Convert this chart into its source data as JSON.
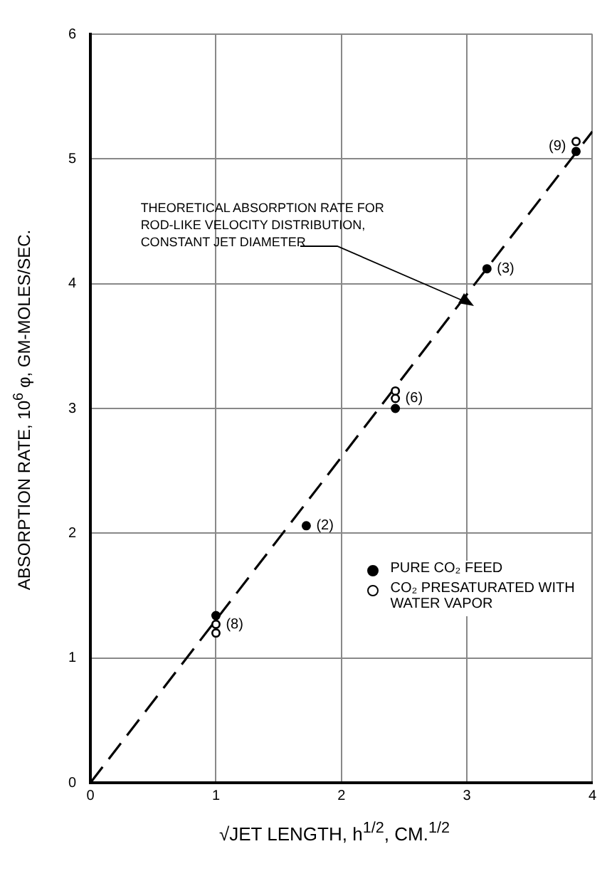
{
  "chart_data": {
    "type": "scatter",
    "xlabel": "√JET LENGTH, h$^{1/2}$, CM.$^{1/2}$",
    "ylabel": "ABSORPTION RATE, 10$^{6}$ φ, GM-MOLES/SEC.",
    "xlim": [
      0,
      4
    ],
    "ylim": [
      0,
      6
    ],
    "xticks": [
      0,
      1,
      2,
      3,
      4
    ],
    "yticks": [
      0,
      1,
      2,
      3,
      4,
      5,
      6
    ],
    "grid": true,
    "legend": "bottom right",
    "marker": "circle",
    "series": [
      {
        "name": "PURE CO₂ FEED",
        "color": "#000000",
        "x": [
          1,
          1.72,
          2.43,
          3.16,
          3.87
        ],
        "values": [
          1.34,
          2.06,
          3.0,
          4.12,
          5.06
        ]
      },
      {
        "name": "CO₂ PRESATURATED WITH WATER VAPOR",
        "color": "#000000",
        "x": [
          1,
          1,
          2.43,
          2.43,
          3.87
        ],
        "values": [
          1.27,
          1.2,
          3.08,
          3.14,
          5.14
        ]
      },
      {
        "type": "line",
        "line_style": "dashed",
        "marker": "none",
        "color": "#000000",
        "x": [
          0,
          4
        ],
        "values": [
          0,
          5.22
        ]
      }
    ],
    "annotations": [
      {
        "text": "(8)",
        "x": 1,
        "y": 1.27
      },
      {
        "text": "(2)",
        "x": 1.72,
        "y": 2.06
      },
      {
        "text": "(6)",
        "x": 2.43,
        "y": 3.08
      },
      {
        "text": "(3)",
        "x": 3.16,
        "y": 4.12
      },
      {
        "text": "(9)",
        "x": 3.87,
        "y": 5.1
      },
      "THEORETICAL ABSORPTION RATE FOR ROD-LIKE VELOCITY DISTRIBUTION, CONSTANT JET DIAMETER"
    ]
  }
}
